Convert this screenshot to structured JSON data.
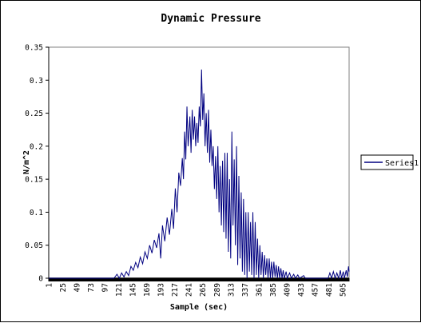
{
  "chart_data": {
    "type": "line",
    "title": "Dynamic Pressure",
    "xlabel": "Sample (sec)",
    "ylabel": "N/m^2",
    "ylim": [
      0,
      0.35
    ],
    "y_ticks": [
      "0",
      "0.05",
      "0.1",
      "0.15",
      "0.2",
      "0.25",
      "0.3",
      "0.35"
    ],
    "x_range": [
      1,
      516
    ],
    "x_ticks": [
      "1",
      "25",
      "49",
      "73",
      "97",
      "121",
      "145",
      "169",
      "193",
      "217",
      "241",
      "265",
      "289",
      "313",
      "337",
      "361",
      "385",
      "409",
      "433",
      "457",
      "481",
      "505"
    ],
    "grid": false,
    "legend_position": "right",
    "series": [
      {
        "name": "Series1",
        "color": "#000080",
        "points": [
          [
            1,
            0
          ],
          [
            100,
            0
          ],
          [
            113,
            0.0
          ],
          [
            118,
            0.006
          ],
          [
            122,
            0.0
          ],
          [
            126,
            0.008
          ],
          [
            130,
            0.002
          ],
          [
            134,
            0.01
          ],
          [
            138,
            0.004
          ],
          [
            142,
            0.018
          ],
          [
            146,
            0.012
          ],
          [
            150,
            0.024
          ],
          [
            154,
            0.016
          ],
          [
            158,
            0.032
          ],
          [
            162,
            0.022
          ],
          [
            166,
            0.04
          ],
          [
            170,
            0.03
          ],
          [
            174,
            0.05
          ],
          [
            178,
            0.038
          ],
          [
            182,
            0.058
          ],
          [
            186,
            0.046
          ],
          [
            190,
            0.068
          ],
          [
            193,
            0.03
          ],
          [
            196,
            0.08
          ],
          [
            200,
            0.056
          ],
          [
            204,
            0.092
          ],
          [
            208,
            0.066
          ],
          [
            212,
            0.105
          ],
          [
            215,
            0.075
          ],
          [
            218,
            0.136
          ],
          [
            221,
            0.1
          ],
          [
            224,
            0.16
          ],
          [
            227,
            0.14
          ],
          [
            230,
            0.182
          ],
          [
            232,
            0.15
          ],
          [
            234,
            0.222
          ],
          [
            236,
            0.18
          ],
          [
            238,
            0.26
          ],
          [
            240,
            0.2
          ],
          [
            243,
            0.245
          ],
          [
            245,
            0.19
          ],
          [
            247,
            0.255
          ],
          [
            249,
            0.21
          ],
          [
            251,
            0.245
          ],
          [
            253,
            0.2
          ],
          [
            255,
            0.235
          ],
          [
            257,
            0.205
          ],
          [
            259,
            0.26
          ],
          [
            261,
            0.23
          ],
          [
            263,
            0.316
          ],
          [
            265,
            0.24
          ],
          [
            267,
            0.28
          ],
          [
            269,
            0.2
          ],
          [
            271,
            0.25
          ],
          [
            273,
            0.19
          ],
          [
            275,
            0.255
          ],
          [
            277,
            0.175
          ],
          [
            279,
            0.225
          ],
          [
            281,
            0.17
          ],
          [
            283,
            0.2
          ],
          [
            285,
            0.135
          ],
          [
            287,
            0.185
          ],
          [
            289,
            0.12
          ],
          [
            291,
            0.2
          ],
          [
            293,
            0.1
          ],
          [
            295,
            0.17
          ],
          [
            297,
            0.08
          ],
          [
            299,
            0.178
          ],
          [
            301,
            0.07
          ],
          [
            303,
            0.19
          ],
          [
            305,
            0.06
          ],
          [
            307,
            0.19
          ],
          [
            309,
            0.04
          ],
          [
            311,
            0.15
          ],
          [
            313,
            0.03
          ],
          [
            315,
            0.222
          ],
          [
            317,
            0.08
          ],
          [
            319,
            0.18
          ],
          [
            321,
            0.05
          ],
          [
            323,
            0.2
          ],
          [
            325,
            0.02
          ],
          [
            327,
            0.155
          ],
          [
            329,
            0.03
          ],
          [
            331,
            0.13
          ],
          [
            333,
            0.01
          ],
          [
            335,
            0.12
          ],
          [
            337,
            0.005
          ],
          [
            339,
            0.1
          ],
          [
            341,
            0.0
          ],
          [
            343,
            0.1
          ],
          [
            345,
            0.01
          ],
          [
            347,
            0.085
          ],
          [
            349,
            0.005
          ],
          [
            351,
            0.1
          ],
          [
            353,
            0.0
          ],
          [
            355,
            0.085
          ],
          [
            357,
            0.005
          ],
          [
            359,
            0.06
          ],
          [
            361,
            0.0
          ],
          [
            363,
            0.05
          ],
          [
            365,
            0.005
          ],
          [
            367,
            0.04
          ],
          [
            369,
            0.0
          ],
          [
            371,
            0.035
          ],
          [
            373,
            0.005
          ],
          [
            375,
            0.03
          ],
          [
            377,
            0.0
          ],
          [
            379,
            0.03
          ],
          [
            381,
            0.0
          ],
          [
            383,
            0.025
          ],
          [
            385,
            0.0
          ],
          [
            387,
            0.025
          ],
          [
            389,
            0.002
          ],
          [
            391,
            0.02
          ],
          [
            393,
            0.0
          ],
          [
            395,
            0.018
          ],
          [
            397,
            0.0
          ],
          [
            399,
            0.015
          ],
          [
            401,
            0.0
          ],
          [
            403,
            0.012
          ],
          [
            405,
            0.0
          ],
          [
            408,
            0.01
          ],
          [
            410,
            0.0
          ],
          [
            414,
            0.008
          ],
          [
            417,
            0.0
          ],
          [
            421,
            0.006
          ],
          [
            424,
            0.0
          ],
          [
            428,
            0.005
          ],
          [
            431,
            0.0
          ],
          [
            438,
            0.004
          ],
          [
            441,
            0.0
          ],
          [
            450,
            0.0
          ],
          [
            480,
            0.0
          ],
          [
            483,
            0.008
          ],
          [
            486,
            0.0
          ],
          [
            489,
            0.01
          ],
          [
            492,
            0.0
          ],
          [
            495,
            0.008
          ],
          [
            498,
            0.0
          ],
          [
            501,
            0.012
          ],
          [
            503,
            0.0
          ],
          [
            506,
            0.01
          ],
          [
            508,
            0.0
          ],
          [
            511,
            0.012
          ],
          [
            513,
            0.002
          ],
          [
            515,
            0.018
          ],
          [
            516,
            0.01
          ]
        ]
      }
    ]
  }
}
